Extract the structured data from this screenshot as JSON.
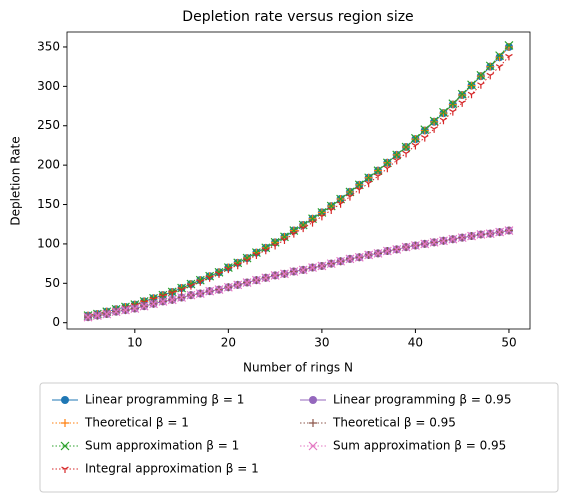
{
  "chart_data": {
    "type": "line",
    "title": "Depletion rate versus region size",
    "xlabel": "Number of rings N",
    "ylabel": "Depletion Rate",
    "x": [
      5,
      6,
      7,
      8,
      9,
      10,
      11,
      12,
      13,
      14,
      15,
      16,
      17,
      18,
      19,
      20,
      21,
      22,
      23,
      24,
      25,
      26,
      27,
      28,
      29,
      30,
      31,
      32,
      33,
      34,
      35,
      36,
      37,
      38,
      39,
      40,
      41,
      42,
      43,
      44,
      45,
      46,
      47,
      48,
      49,
      50
    ],
    "xlim": [
      2.75,
      52.25
    ],
    "xticks": [
      10,
      20,
      30,
      40,
      50
    ],
    "ylim": [
      -8,
      369
    ],
    "yticks": [
      0,
      50,
      100,
      150,
      200,
      250,
      300,
      350
    ],
    "grid": false,
    "legend": "below",
    "series": [
      {
        "name": "Linear programming β = 1",
        "color": "#1f77b4",
        "marker": "o",
        "linestyle": "solid",
        "values": [
          9,
          11,
          14,
          17,
          20,
          23,
          27,
          31,
          35,
          39,
          44,
          49,
          54,
          59,
          64,
          70,
          76,
          82,
          89,
          95,
          102,
          109,
          117,
          124,
          132,
          140,
          148,
          157,
          166,
          175,
          184,
          193,
          203,
          213,
          223,
          233,
          244,
          255,
          266,
          277,
          289,
          301,
          313,
          325,
          337,
          350
        ]
      },
      {
        "name": "Theoretical β = 1",
        "color": "#ff7f0e",
        "marker": "+",
        "linestyle": "dotted",
        "values": [
          9,
          11,
          14,
          17,
          20,
          23,
          27,
          31,
          35,
          39,
          44,
          49,
          54,
          59,
          64,
          70,
          76,
          82,
          89,
          95,
          102,
          109,
          117,
          124,
          132,
          140,
          148,
          157,
          166,
          175,
          184,
          193,
          203,
          213,
          223,
          233,
          244,
          255,
          266,
          277,
          289,
          301,
          313,
          325,
          337,
          350
        ]
      },
      {
        "name": "Sum approximation β = 1",
        "color": "#2ca02c",
        "marker": "x",
        "linestyle": "dotted",
        "values": [
          9,
          11,
          14,
          17,
          20,
          23,
          27,
          31,
          35,
          39,
          44,
          49,
          54,
          59,
          64,
          70,
          76,
          82,
          89,
          95,
          102,
          109,
          117,
          124,
          132,
          140,
          148,
          157,
          166,
          175,
          184,
          193,
          203,
          213,
          223,
          234,
          245,
          256,
          267,
          278,
          290,
          302,
          314,
          326,
          339,
          352
        ]
      },
      {
        "name": "Integral approximation β = 1",
        "color": "#d62728",
        "marker": "tri",
        "linestyle": "dotted",
        "values": [
          9,
          11,
          13,
          16,
          19,
          22,
          26,
          30,
          34,
          38,
          42,
          47,
          52,
          57,
          62,
          68,
          73,
          79,
          86,
          92,
          98,
          105,
          113,
          120,
          127,
          135,
          143,
          151,
          160,
          169,
          177,
          186,
          196,
          206,
          215,
          225,
          235,
          246,
          257,
          268,
          279,
          290,
          302,
          314,
          325,
          338
        ]
      },
      {
        "name": "Linear programming β = 0.95",
        "color": "#9467bd",
        "marker": "o",
        "linestyle": "solid",
        "values": [
          7,
          9,
          11,
          14,
          16,
          18,
          21,
          24,
          27,
          29,
          32,
          35,
          37,
          40,
          42,
          45,
          48,
          51,
          54,
          57,
          60,
          62,
          65,
          67,
          70,
          72,
          75,
          78,
          81,
          83,
          86,
          88,
          91,
          93,
          96,
          98,
          100,
          102,
          104,
          106,
          108,
          110,
          112,
          113,
          115,
          117
        ]
      },
      {
        "name": "Theoretical β = 0.95",
        "color": "#8c564b",
        "marker": "+",
        "linestyle": "dotted",
        "values": [
          7,
          9,
          11,
          14,
          16,
          18,
          21,
          24,
          27,
          29,
          32,
          35,
          37,
          40,
          42,
          45,
          48,
          51,
          54,
          57,
          60,
          62,
          65,
          67,
          70,
          72,
          75,
          78,
          81,
          83,
          86,
          88,
          91,
          93,
          96,
          98,
          100,
          102,
          104,
          106,
          108,
          110,
          112,
          113,
          115,
          117
        ]
      },
      {
        "name": "Sum approximation β = 0.95",
        "color": "#e377c2",
        "marker": "x",
        "linestyle": "dotted",
        "values": [
          7,
          9,
          11,
          14,
          16,
          18,
          21,
          24,
          27,
          29,
          32,
          35,
          37,
          40,
          42,
          45,
          48,
          51,
          54,
          57,
          60,
          62,
          65,
          67,
          70,
          72,
          75,
          78,
          81,
          83,
          86,
          88,
          91,
          93,
          96,
          98,
          100,
          102,
          104,
          106,
          108,
          110,
          112,
          113,
          115,
          117
        ]
      }
    ]
  }
}
